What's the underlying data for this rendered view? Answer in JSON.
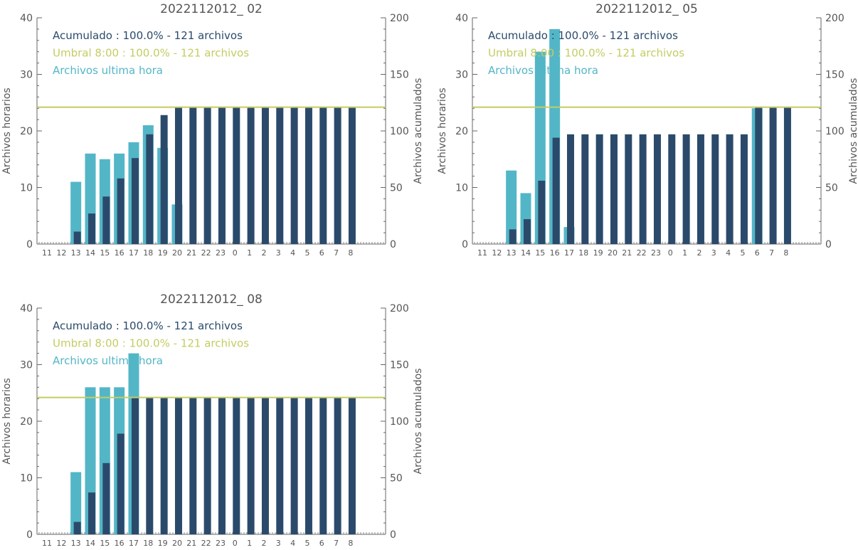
{
  "chart_data": [
    {
      "type": "bar",
      "title": "2022112012_ 02",
      "ylabel_left": "Archivos horarios",
      "ylabel_right": "Archivos acumulados",
      "ylim_left": [
        0,
        40
      ],
      "ylim_right": [
        0,
        200
      ],
      "yticks_left": [
        "0",
        "10",
        "20",
        "30",
        "40"
      ],
      "yticks_right": [
        "0",
        "50",
        "100",
        "150",
        "200"
      ],
      "categories": [
        "11",
        "12",
        "13",
        "14",
        "15",
        "16",
        "17",
        "18",
        "19",
        "20",
        "21",
        "22",
        "23",
        "0",
        "1",
        "2",
        "3",
        "4",
        "5",
        "6",
        "7",
        "8"
      ],
      "threshold": 121,
      "legend": [
        {
          "text": "Acumulado : 100.0% - 121 archivos",
          "color": "#2b4a6b"
        },
        {
          "text": "Umbral 8:00 : 100.0% - 121 archivos",
          "color": "#c5cc62"
        },
        {
          "text": "Archivos ultima hora",
          "color": "#53b6c7"
        }
      ],
      "series": [
        {
          "name": "Archivos ultima hora",
          "axis": "left",
          "color": "#53b6c7",
          "values": [
            0,
            0,
            11,
            16,
            15,
            16,
            18,
            21,
            17,
            7,
            0,
            0,
            0,
            0,
            0,
            0,
            0,
            0,
            0,
            0,
            0,
            0
          ]
        },
        {
          "name": "Acumulado",
          "axis": "right",
          "color": "#2b4a6b",
          "values": [
            0,
            0,
            11,
            27,
            42,
            58,
            76,
            97,
            114,
            121,
            121,
            121,
            121,
            121,
            121,
            121,
            121,
            121,
            121,
            121,
            121,
            121
          ]
        }
      ]
    },
    {
      "type": "bar",
      "title": "2022112012_ 05",
      "ylabel_left": "Archivos horarios",
      "ylabel_right": "Archivos acumulados",
      "ylim_left": [
        0,
        40
      ],
      "ylim_right": [
        0,
        200
      ],
      "yticks_left": [
        "0",
        "10",
        "20",
        "30",
        "40"
      ],
      "yticks_right": [
        "0",
        "50",
        "100",
        "150",
        "200"
      ],
      "categories": [
        "11",
        "12",
        "13",
        "14",
        "15",
        "16",
        "17",
        "18",
        "19",
        "20",
        "21",
        "22",
        "23",
        "0",
        "1",
        "2",
        "3",
        "4",
        "5",
        "6",
        "7",
        "8"
      ],
      "threshold": 121,
      "legend": [
        {
          "text": "Acumulado : 100.0% - 121 archivos",
          "color": "#2b4a6b"
        },
        {
          "text": "Umbral 8:00 : 100.0% - 121 archivos",
          "color": "#c5cc62"
        },
        {
          "text": "Archivos ultima hora",
          "color": "#53b6c7"
        }
      ],
      "series": [
        {
          "name": "Archivos ultima hora",
          "axis": "left",
          "color": "#53b6c7",
          "values": [
            0,
            0,
            13,
            9,
            34,
            38,
            3,
            0,
            0,
            0,
            0,
            0,
            0,
            0,
            0,
            0,
            0,
            0,
            0,
            24,
            0,
            0
          ]
        },
        {
          "name": "Acumulado",
          "axis": "right",
          "color": "#2b4a6b",
          "values": [
            0,
            0,
            13,
            22,
            56,
            94,
            97,
            97,
            97,
            97,
            97,
            97,
            97,
            97,
            97,
            97,
            97,
            97,
            97,
            121,
            121,
            121
          ]
        }
      ]
    },
    {
      "type": "bar",
      "title": "2022112012_ 08",
      "ylabel_left": "Archivos horarios",
      "ylabel_right": "Archivos acumulados",
      "ylim_left": [
        0,
        40
      ],
      "ylim_right": [
        0,
        200
      ],
      "yticks_left": [
        "0",
        "10",
        "20",
        "30",
        "40"
      ],
      "yticks_right": [
        "0",
        "50",
        "100",
        "150",
        "200"
      ],
      "categories": [
        "11",
        "12",
        "13",
        "14",
        "15",
        "16",
        "17",
        "18",
        "19",
        "20",
        "21",
        "22",
        "23",
        "0",
        "1",
        "2",
        "3",
        "4",
        "5",
        "6",
        "7",
        "8"
      ],
      "threshold": 121,
      "legend": [
        {
          "text": "Acumulado : 100.0% - 121 archivos",
          "color": "#2b4a6b"
        },
        {
          "text": "Umbral 8:00 : 100.0% - 121 archivos",
          "color": "#c5cc62"
        },
        {
          "text": "Archivos ultima hora",
          "color": "#53b6c7"
        }
      ],
      "series": [
        {
          "name": "Archivos ultima hora",
          "axis": "left",
          "color": "#53b6c7",
          "values": [
            0,
            0,
            11,
            26,
            26,
            26,
            32,
            0,
            0,
            0,
            0,
            0,
            0,
            0,
            0,
            0,
            0,
            0,
            0,
            0,
            0,
            0
          ]
        },
        {
          "name": "Acumulado",
          "axis": "right",
          "color": "#2b4a6b",
          "values": [
            0,
            0,
            11,
            37,
            63,
            89,
            121,
            121,
            121,
            121,
            121,
            121,
            121,
            121,
            121,
            121,
            121,
            121,
            121,
            121,
            121,
            121
          ]
        }
      ]
    }
  ]
}
